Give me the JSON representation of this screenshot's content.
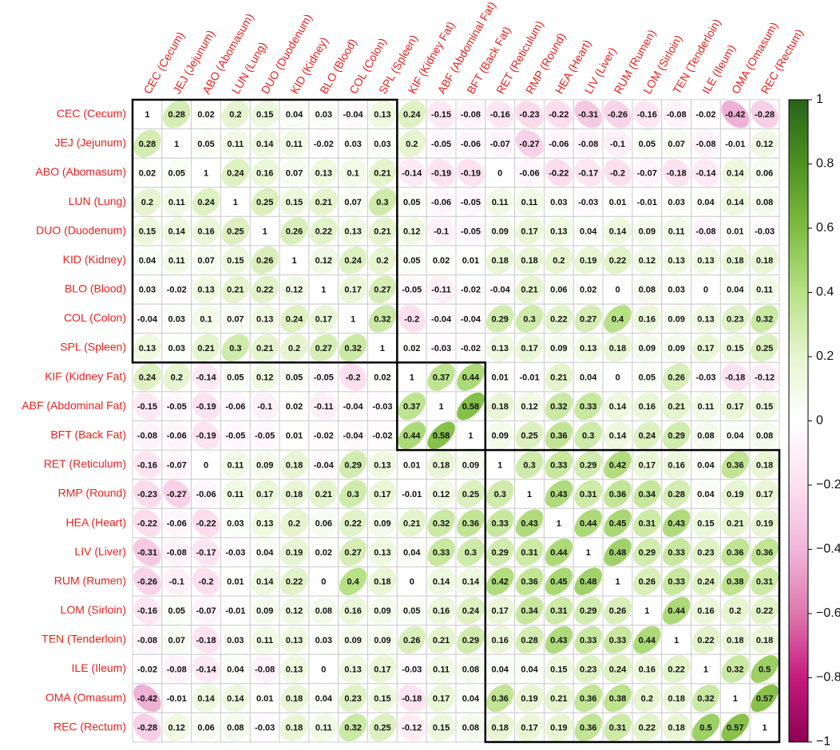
{
  "chart_data": {
    "type": "correlation",
    "labels": [
      "CEC (Cecum)",
      "JEJ (Jejunum)",
      "ABO (Abomasum)",
      "LUN (Lung)",
      "DUO (Duodenum)",
      "KID (Kidney)",
      "BLO (Blood)",
      "COL (Colon)",
      "SPL (Spleen)",
      "KIF (Kidney Fat)",
      "ABF (Abdominal Fat)",
      "BFT (Back Fat)",
      "RET (Reticulum)",
      "RMP (Round)",
      "HEA (Heart)",
      "LIV (Liver)",
      "RUM (Rumen)",
      "LOM (Sirloin)",
      "TEN (Tenderloin)",
      "ILE (Ileum)",
      "OMA (Omasum)",
      "REC (Rectum)"
    ],
    "matrix": [
      [
        1,
        0.28,
        0.02,
        0.2,
        0.15,
        0.04,
        0.03,
        -0.04,
        0.13,
        0.24,
        -0.15,
        -0.08,
        -0.16,
        -0.23,
        -0.22,
        -0.31,
        -0.26,
        -0.16,
        -0.08,
        -0.02,
        -0.42,
        -0.28
      ],
      [
        0.28,
        1,
        0.05,
        0.11,
        0.14,
        0.11,
        -0.02,
        0.03,
        0.03,
        0.2,
        -0.05,
        -0.06,
        -0.07,
        -0.27,
        -0.06,
        -0.08,
        -0.1,
        0.05,
        0.07,
        -0.08,
        -0.01,
        0.12
      ],
      [
        0.02,
        0.05,
        1,
        0.24,
        0.16,
        0.07,
        0.13,
        0.1,
        0.21,
        -0.14,
        -0.19,
        -0.19,
        0,
        -0.06,
        -0.22,
        -0.17,
        -0.2,
        -0.07,
        -0.18,
        -0.14,
        0.14,
        0.06
      ],
      [
        0.2,
        0.11,
        0.24,
        1,
        0.25,
        0.15,
        0.21,
        0.07,
        0.3,
        0.05,
        -0.06,
        -0.05,
        0.11,
        0.11,
        0.03,
        -0.03,
        0.01,
        -0.01,
        0.03,
        0.04,
        0.14,
        0.08
      ],
      [
        0.15,
        0.14,
        0.16,
        0.25,
        1,
        0.26,
        0.22,
        0.13,
        0.21,
        0.12,
        -0.1,
        -0.05,
        0.09,
        0.17,
        0.13,
        0.04,
        0.14,
        0.09,
        0.11,
        -0.08,
        0.01,
        -0.03
      ],
      [
        0.04,
        0.11,
        0.07,
        0.15,
        0.26,
        1,
        0.12,
        0.24,
        0.2,
        0.05,
        0.02,
        0.01,
        0.18,
        0.18,
        0.2,
        0.19,
        0.22,
        0.12,
        0.13,
        0.13,
        0.18,
        0.18
      ],
      [
        0.03,
        -0.02,
        0.13,
        0.21,
        0.22,
        0.12,
        1,
        0.17,
        0.27,
        -0.05,
        -0.11,
        -0.02,
        -0.04,
        0.21,
        0.06,
        0.02,
        0,
        0.08,
        0.03,
        0,
        0.04,
        0.11
      ],
      [
        -0.04,
        0.03,
        0.1,
        0.07,
        0.13,
        0.24,
        0.17,
        1,
        0.32,
        -0.2,
        -0.04,
        -0.04,
        0.29,
        0.3,
        0.22,
        0.27,
        0.4,
        0.16,
        0.09,
        0.13,
        0.23,
        0.32
      ],
      [
        0.13,
        0.03,
        0.21,
        0.3,
        0.21,
        0.2,
        0.27,
        0.32,
        1,
        0.02,
        -0.03,
        -0.02,
        0.13,
        0.17,
        0.09,
        0.13,
        0.18,
        0.09,
        0.09,
        0.17,
        0.15,
        0.25
      ],
      [
        0.24,
        0.2,
        -0.14,
        0.05,
        0.12,
        0.05,
        -0.05,
        -0.2,
        0.02,
        1,
        0.37,
        0.44,
        0.01,
        -0.01,
        0.21,
        0.04,
        0,
        0.05,
        0.26,
        -0.03,
        -0.18,
        -0.12
      ],
      [
        -0.15,
        -0.05,
        -0.19,
        -0.06,
        -0.1,
        0.02,
        -0.11,
        -0.04,
        -0.03,
        0.37,
        1,
        0.58,
        0.18,
        0.12,
        0.32,
        0.33,
        0.14,
        0.16,
        0.21,
        0.11,
        0.17,
        0.15
      ],
      [
        -0.08,
        -0.06,
        -0.19,
        -0.05,
        -0.05,
        0.01,
        -0.02,
        -0.04,
        -0.02,
        0.44,
        0.58,
        1,
        0.09,
        0.25,
        0.36,
        0.3,
        0.14,
        0.24,
        0.29,
        0.08,
        0.04,
        0.08
      ],
      [
        -0.16,
        -0.07,
        0,
        0.11,
        0.09,
        0.18,
        -0.04,
        0.29,
        0.13,
        0.01,
        0.18,
        0.09,
        1,
        0.3,
        0.33,
        0.29,
        0.42,
        0.17,
        0.16,
        0.04,
        0.36,
        0.18
      ],
      [
        -0.23,
        -0.27,
        -0.06,
        0.11,
        0.17,
        0.18,
        0.21,
        0.3,
        0.17,
        -0.01,
        0.12,
        0.25,
        0.3,
        1,
        0.43,
        0.31,
        0.36,
        0.34,
        0.28,
        0.04,
        0.19,
        0.17
      ],
      [
        -0.22,
        -0.06,
        -0.22,
        0.03,
        0.13,
        0.2,
        0.06,
        0.22,
        0.09,
        0.21,
        0.32,
        0.36,
        0.33,
        0.43,
        1,
        0.44,
        0.45,
        0.31,
        0.43,
        0.15,
        0.21,
        0.19
      ],
      [
        -0.31,
        -0.08,
        -0.17,
        -0.03,
        0.04,
        0.19,
        0.02,
        0.27,
        0.13,
        0.04,
        0.33,
        0.3,
        0.29,
        0.31,
        0.44,
        1,
        0.48,
        0.29,
        0.33,
        0.23,
        0.36,
        0.36
      ],
      [
        -0.26,
        -0.1,
        -0.2,
        0.01,
        0.14,
        0.22,
        0,
        0.4,
        0.18,
        0,
        0.14,
        0.14,
        0.42,
        0.36,
        0.45,
        0.48,
        1,
        0.26,
        0.33,
        0.24,
        0.38,
        0.31
      ],
      [
        -0.16,
        0.05,
        -0.07,
        -0.01,
        0.09,
        0.12,
        0.08,
        0.16,
        0.09,
        0.05,
        0.16,
        0.24,
        0.17,
        0.34,
        0.31,
        0.29,
        0.26,
        1,
        0.44,
        0.16,
        0.2,
        0.22
      ],
      [
        -0.08,
        0.07,
        -0.18,
        0.03,
        0.11,
        0.13,
        0.03,
        0.09,
        0.09,
        0.26,
        0.21,
        0.29,
        0.16,
        0.28,
        0.43,
        0.33,
        0.33,
        0.44,
        1,
        0.22,
        0.18,
        0.18
      ],
      [
        -0.02,
        -0.08,
        -0.14,
        0.04,
        -0.08,
        0.13,
        0,
        0.13,
        0.17,
        -0.03,
        0.11,
        0.08,
        0.04,
        0.04,
        0.15,
        0.23,
        0.24,
        0.16,
        0.22,
        1,
        0.32,
        0.5
      ],
      [
        -0.42,
        -0.01,
        0.14,
        0.14,
        0.01,
        0.18,
        0.04,
        0.23,
        0.15,
        -0.18,
        0.17,
        0.04,
        0.36,
        0.19,
        0.21,
        0.36,
        0.38,
        0.2,
        0.18,
        0.32,
        1,
        0.57
      ],
      [
        -0.28,
        0.12,
        0.06,
        0.08,
        -0.03,
        0.18,
        0.11,
        0.32,
        0.25,
        -0.12,
        0.15,
        0.08,
        0.18,
        0.17,
        0.19,
        0.36,
        0.31,
        0.22,
        0.18,
        0.5,
        0.57,
        1
      ]
    ],
    "clusters": [
      9,
      3,
      10
    ],
    "colorscale": [
      "#8e0152",
      "#c51b7d",
      "#de77ae",
      "#f1b6da",
      "#fde0ef",
      "#ffffff",
      "#e6f5d0",
      "#b8e186",
      "#7fbc41",
      "#4d9221",
      "#276419"
    ],
    "clim": [
      -1,
      1
    ],
    "cticks": [
      1,
      0.8,
      0.6,
      0.4,
      0.2,
      0,
      {
        "value": -0.2,
        "label": "−0.2"
      },
      {
        "value": -0.4,
        "label": "−0.4"
      },
      {
        "value": -0.6,
        "label": "−0.6"
      },
      {
        "value": -0.8,
        "label": "−0.8"
      },
      {
        "value": -1,
        "label": "−1"
      }
    ]
  }
}
